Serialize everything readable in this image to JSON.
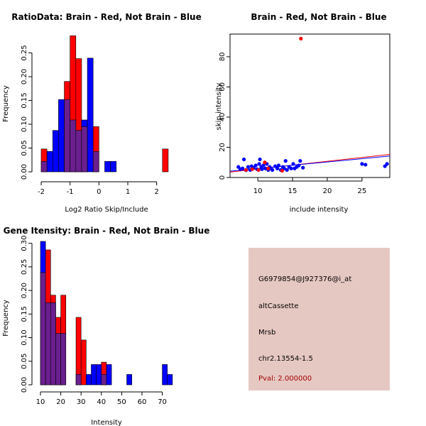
{
  "colors": {
    "red": "#ff0000",
    "blue": "#0000ff",
    "overlap": "#6b1f8f",
    "panel_bg": "#e6c8c2",
    "pval": "#a00000"
  },
  "chart_data": [
    {
      "type": "bar",
      "subtype": "overlaid-histogram",
      "title": "RatioData: Brain - Red, Not Brain - Blue",
      "xlabel": "Log2 Ratio Skip/Include",
      "ylabel": "Frequency",
      "xlim": [
        -2,
        2.5
      ],
      "ylim": [
        0,
        0.3
      ],
      "xticks": [
        "-2",
        "-1",
        "0",
        "1",
        "2"
      ],
      "yticks": [
        "0.00",
        "0.05",
        "0.10",
        "0.15",
        "0.20",
        "0.25"
      ],
      "bin_width": 0.2,
      "series": [
        {
          "name": "Brain",
          "color": "red",
          "bins": [
            {
              "x": -2.0,
              "v": 0.048
            },
            {
              "x": -1.2,
              "v": 0.19
            },
            {
              "x": -1.0,
              "v": 0.286
            },
            {
              "x": -0.8,
              "v": 0.238
            },
            {
              "x": -0.6,
              "v": 0.095
            },
            {
              "x": -0.2,
              "v": 0.095
            },
            {
              "x": 2.2,
              "v": 0.048
            }
          ]
        },
        {
          "name": "Not Brain",
          "color": "blue",
          "bins": [
            {
              "x": -2.0,
              "v": 0.022
            },
            {
              "x": -1.8,
              "v": 0.043
            },
            {
              "x": -1.6,
              "v": 0.087
            },
            {
              "x": -1.4,
              "v": 0.152
            },
            {
              "x": -1.2,
              "v": 0.152
            },
            {
              "x": -1.0,
              "v": 0.109
            },
            {
              "x": -0.8,
              "v": 0.087
            },
            {
              "x": -0.6,
              "v": 0.109
            },
            {
              "x": -0.4,
              "v": 0.239
            },
            {
              "x": -0.2,
              "v": 0.043
            },
            {
              "x": 0.2,
              "v": 0.022
            },
            {
              "x": 0.4,
              "v": 0.022
            }
          ]
        }
      ]
    },
    {
      "type": "scatter",
      "title": "Brain - Red, Not Brain - Blue",
      "xlabel": "include intensity",
      "ylabel": "skip intensity",
      "xlim": [
        6,
        29
      ],
      "ylim": [
        0,
        95
      ],
      "xticks": [
        "10",
        "15",
        "20",
        "25"
      ],
      "yticks": [
        "0",
        "20",
        "40",
        "60",
        "80"
      ],
      "series": [
        {
          "name": "Brain",
          "color": "red",
          "points": [
            [
              8.3,
              5
            ],
            [
              9.2,
              5.5
            ],
            [
              10.1,
              5
            ],
            [
              11,
              10
            ],
            [
              11.5,
              6
            ],
            [
              13.5,
              4.5
            ],
            [
              16.2,
              92
            ]
          ]
        },
        {
          "name": "Not Brain",
          "color": "blue",
          "points": [
            [
              7.2,
              7
            ],
            [
              7.5,
              5.5
            ],
            [
              7.8,
              6
            ],
            [
              8,
              12
            ],
            [
              8.3,
              4.8
            ],
            [
              8.6,
              7
            ],
            [
              8.9,
              5
            ],
            [
              9.1,
              7.5
            ],
            [
              9.4,
              6.5
            ],
            [
              9.7,
              8
            ],
            [
              9.9,
              5.5
            ],
            [
              10.2,
              9
            ],
            [
              10.3,
              12
            ],
            [
              10.5,
              7
            ],
            [
              10.6,
              5.5
            ],
            [
              10.8,
              8
            ],
            [
              11.1,
              6
            ],
            [
              11.3,
              9
            ],
            [
              11.5,
              5
            ],
            [
              11.7,
              7
            ],
            [
              11.9,
              6
            ],
            [
              12.1,
              5
            ],
            [
              12.5,
              7.5
            ],
            [
              12.8,
              6
            ],
            [
              13,
              8
            ],
            [
              13.3,
              5
            ],
            [
              13.6,
              7
            ],
            [
              13.8,
              6
            ],
            [
              14,
              11
            ],
            [
              14.2,
              5
            ],
            [
              14.5,
              7
            ],
            [
              14.8,
              6
            ],
            [
              15.1,
              9
            ],
            [
              15.3,
              6
            ],
            [
              15.6,
              7
            ],
            [
              15.9,
              8
            ],
            [
              16.1,
              11
            ],
            [
              16.5,
              6.5
            ],
            [
              25,
              9
            ],
            [
              25.5,
              8.5
            ],
            [
              28.3,
              7.5
            ],
            [
              28.6,
              9
            ]
          ]
        }
      ],
      "fit_lines": [
        {
          "color": "red",
          "from": [
            6,
            3.6
          ],
          "to": [
            29,
            15.3
          ]
        },
        {
          "color": "blue",
          "from": [
            6,
            4.2
          ],
          "to": [
            29,
            14.2
          ]
        }
      ]
    },
    {
      "type": "bar",
      "subtype": "overlaid-histogram",
      "title": "Gene Itensity: Brain - Red, Not Brain - Blue",
      "xlabel": "Intensity",
      "ylabel": "Frequency",
      "xlim": [
        10,
        77.5
      ],
      "ylim": [
        0,
        0.31
      ],
      "xticks": [
        "10",
        "20",
        "30",
        "40",
        "50",
        "60",
        "70"
      ],
      "yticks": [
        "0.00",
        "0.05",
        "0.10",
        "0.15",
        "0.20",
        "0.25",
        "0.30"
      ],
      "bin_width": 2.5,
      "series": [
        {
          "name": "Brain",
          "color": "red",
          "bins": [
            {
              "x": 10,
              "v": 0.238
            },
            {
              "x": 12.5,
              "v": 0.286
            },
            {
              "x": 15,
              "v": 0.19
            },
            {
              "x": 17.5,
              "v": 0.143
            },
            {
              "x": 20,
              "v": 0.19
            },
            {
              "x": 27.5,
              "v": 0.143
            },
            {
              "x": 30,
              "v": 0.095
            },
            {
              "x": 40,
              "v": 0.048
            }
          ]
        },
        {
          "name": "Not Brain",
          "color": "blue",
          "bins": [
            {
              "x": 10,
              "v": 0.304
            },
            {
              "x": 12.5,
              "v": 0.174
            },
            {
              "x": 15,
              "v": 0.174
            },
            {
              "x": 17.5,
              "v": 0.109
            },
            {
              "x": 20,
              "v": 0.109
            },
            {
              "x": 27.5,
              "v": 0.022
            },
            {
              "x": 32.5,
              "v": 0.022
            },
            {
              "x": 35,
              "v": 0.043
            },
            {
              "x": 37.5,
              "v": 0.043
            },
            {
              "x": 40,
              "v": 0.022
            },
            {
              "x": 42.5,
              "v": 0.043
            },
            {
              "x": 52.5,
              "v": 0.022
            },
            {
              "x": 70,
              "v": 0.043
            },
            {
              "x": 72.5,
              "v": 0.022
            }
          ]
        }
      ]
    }
  ],
  "info_panel": {
    "probe_id": "G6979854@J927376@i_at",
    "event_type": "altCassette",
    "gene": "Mrsb",
    "location": "chr2.13554-1.5",
    "pval": "Pval: 2.000000"
  }
}
